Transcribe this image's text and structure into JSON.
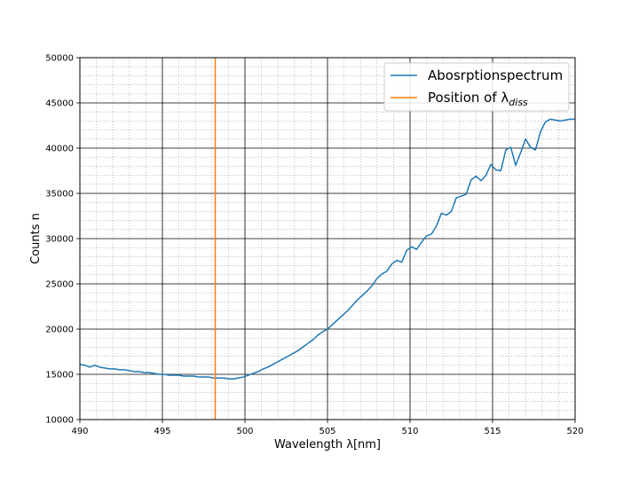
{
  "chart_data": {
    "type": "line",
    "title": "",
    "xlabel": "Wavelength λ[nm]",
    "ylabel": "Counts n",
    "xlim": [
      490,
      520
    ],
    "ylim": [
      10000,
      50000
    ],
    "x_ticks": [
      490,
      495,
      500,
      505,
      510,
      515,
      520
    ],
    "y_ticks": [
      10000,
      15000,
      20000,
      25000,
      30000,
      35000,
      40000,
      45000,
      50000
    ],
    "x_tick_labels": [
      "490",
      "495",
      "500",
      "505",
      "510",
      "515",
      "520"
    ],
    "y_tick_labels": [
      "10000",
      "15000",
      "20000",
      "25000",
      "30000",
      "35000",
      "40000",
      "45000",
      "50000"
    ],
    "grid": {
      "major": true,
      "minor": true
    },
    "legend_position": "top-right",
    "series": [
      {
        "name": "Abosrptionspectrum",
        "color": "#1f77b4",
        "x": [
          490.0,
          490.3,
          490.6,
          490.9,
          491.2,
          491.5,
          491.8,
          492.1,
          492.4,
          492.7,
          493.0,
          493.3,
          493.6,
          493.9,
          494.2,
          494.5,
          494.8,
          495.1,
          495.4,
          495.7,
          496.0,
          496.3,
          496.6,
          496.9,
          497.2,
          497.5,
          497.8,
          498.1,
          498.4,
          498.7,
          499.0,
          499.3,
          499.6,
          499.9,
          500.2,
          500.5,
          500.8,
          501.1,
          501.4,
          501.7,
          502.0,
          502.3,
          502.6,
          502.9,
          503.2,
          503.5,
          503.8,
          504.1,
          504.4,
          504.7,
          505.0,
          505.3,
          505.6,
          505.9,
          506.2,
          506.5,
          506.8,
          507.1,
          507.4,
          507.7,
          508.0,
          508.3,
          508.6,
          508.9,
          509.2,
          509.5,
          509.8,
          510.1,
          510.4,
          510.7,
          511.0,
          511.3,
          511.6,
          511.9,
          512.2,
          512.5,
          512.8,
          513.1,
          513.4,
          513.7,
          514.0,
          514.3,
          514.6,
          514.9,
          515.2,
          515.5,
          515.8,
          516.1,
          516.4,
          516.7,
          517.0,
          517.3,
          517.6,
          517.9,
          518.2,
          518.5,
          518.8,
          519.1,
          519.4,
          519.7,
          520.0
        ],
        "y": [
          16100,
          16000,
          15800,
          16000,
          15800,
          15700,
          15600,
          15600,
          15500,
          15500,
          15400,
          15300,
          15300,
          15200,
          15200,
          15100,
          15000,
          15000,
          14900,
          14900,
          14900,
          14800,
          14800,
          14800,
          14700,
          14700,
          14700,
          14600,
          14600,
          14600,
          14500,
          14500,
          14600,
          14700,
          14900,
          15100,
          15300,
          15600,
          15800,
          16100,
          16400,
          16700,
          17000,
          17300,
          17600,
          18000,
          18400,
          18800,
          19300,
          19700,
          20000,
          20500,
          21000,
          21500,
          22000,
          22600,
          23200,
          23700,
          24200,
          24800,
          25600,
          26100,
          26400,
          27200,
          27600,
          27400,
          28700,
          29100,
          28800,
          29600,
          30300,
          30500,
          31400,
          32800,
          32600,
          33000,
          34500,
          34700,
          34900,
          36500,
          36900,
          36400,
          37000,
          38200,
          37600,
          37500,
          39800,
          40100,
          38100,
          39500,
          41000,
          40100,
          39800,
          41800,
          42900,
          43200,
          43100,
          43000,
          43100,
          43200,
          43200
        ]
      },
      {
        "name": "Position of λ",
        "name_subscript": "diss",
        "color": "#ff7f0e",
        "x": [
          498.2,
          498.2
        ],
        "y": [
          10000,
          50000
        ]
      }
    ]
  }
}
